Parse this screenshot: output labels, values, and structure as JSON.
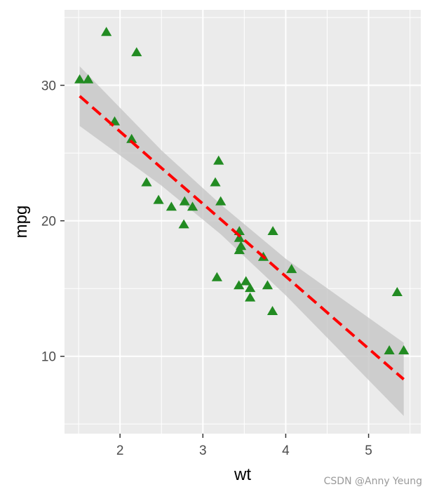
{
  "chart_data": {
    "type": "scatter",
    "xlabel": "wt",
    "ylabel": "mpg",
    "xlim": [
      1.33,
      5.63
    ],
    "ylim": [
      4.29,
      35.57
    ],
    "x_ticks": [
      2,
      3,
      4,
      5
    ],
    "y_ticks": [
      10,
      20,
      30
    ],
    "grid": true,
    "legend": "none",
    "colors": {
      "panel": "#ebebeb",
      "grid": "#ffffff",
      "points": "#228b22",
      "line": "#ff0000",
      "band": "#c0c0c0"
    },
    "marker": "triangle",
    "points": {
      "x": [
        2.62,
        2.875,
        2.32,
        3.215,
        3.44,
        3.46,
        3.57,
        3.19,
        3.15,
        3.44,
        3.44,
        4.07,
        3.73,
        3.78,
        5.25,
        5.424,
        5.345,
        2.2,
        1.615,
        1.835,
        2.465,
        3.52,
        3.435,
        3.84,
        3.845,
        1.935,
        2.14,
        1.513,
        3.17,
        2.77,
        3.57,
        2.78
      ],
      "y": [
        21.0,
        21.0,
        22.8,
        21.4,
        18.7,
        18.1,
        14.3,
        24.4,
        22.8,
        19.2,
        17.8,
        16.4,
        17.3,
        15.2,
        10.4,
        10.4,
        14.7,
        32.4,
        30.4,
        33.9,
        21.5,
        15.5,
        15.2,
        13.3,
        19.2,
        27.3,
        26.0,
        30.4,
        15.8,
        19.7,
        15.0,
        21.4
      ]
    },
    "fit": {
      "method": "lm",
      "style": "dashed",
      "x": [
        1.513,
        2.5,
        3.217,
        4.0,
        5.424
      ],
      "y": [
        29.2,
        23.9,
        20.1,
        15.9,
        8.3
      ],
      "ci_lower": [
        27.0,
        22.6,
        19.0,
        14.5,
        5.6
      ],
      "ci_upper": [
        31.4,
        25.2,
        21.2,
        17.2,
        11.0
      ]
    }
  },
  "watermark": "CSDN @Anny Yeung"
}
